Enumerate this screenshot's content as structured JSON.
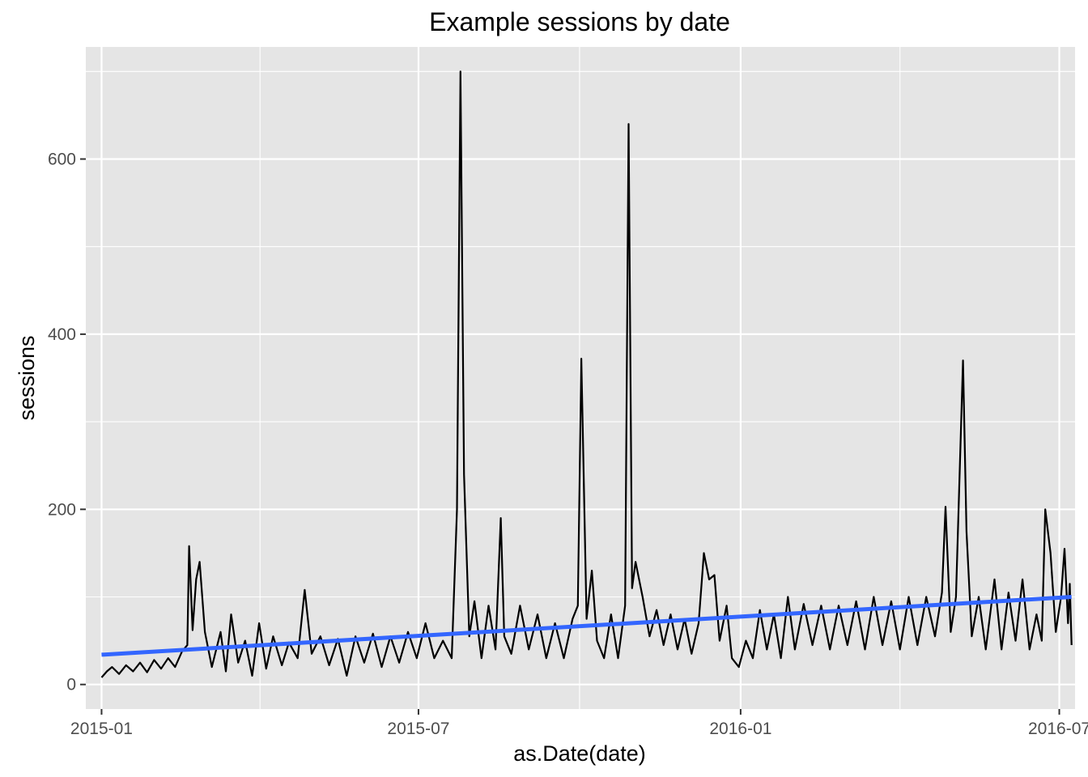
{
  "chart_data": {
    "type": "line",
    "title": "Example sessions by date",
    "xlabel": "as.Date(date)",
    "ylabel": "sessions",
    "x_ticks": [
      "2015-01",
      "2015-07",
      "2016-01",
      "2016-07"
    ],
    "y_ticks": [
      "0",
      "200",
      "400",
      "600"
    ],
    "xlim": [
      "2014-12-23",
      "2016-07-10"
    ],
    "ylim": [
      -28,
      728
    ],
    "grid": true,
    "legend": "none",
    "colors": {
      "panel": "#e5e5e5",
      "grid": "#ffffff",
      "series": "#000000",
      "trend": "#3366ff"
    },
    "series": [
      {
        "values": [
          [
            "2015-01-01",
            8
          ],
          [
            "2015-01-04",
            15
          ],
          [
            "2015-01-07",
            20
          ],
          [
            "2015-01-11",
            12
          ],
          [
            "2015-01-15",
            22
          ],
          [
            "2015-01-19",
            15
          ],
          [
            "2015-01-23",
            25
          ],
          [
            "2015-01-27",
            14
          ],
          [
            "2015-01-31",
            28
          ],
          [
            "2015-02-04",
            18
          ],
          [
            "2015-02-08",
            30
          ],
          [
            "2015-02-12",
            20
          ],
          [
            "2015-02-16",
            38
          ],
          [
            "2015-02-19",
            45
          ],
          [
            "2015-02-20",
            158
          ],
          [
            "2015-02-22",
            62
          ],
          [
            "2015-02-24",
            120
          ],
          [
            "2015-02-26",
            140
          ],
          [
            "2015-03-01",
            60
          ],
          [
            "2015-03-05",
            20
          ],
          [
            "2015-03-10",
            60
          ],
          [
            "2015-03-13",
            15
          ],
          [
            "2015-03-16",
            80
          ],
          [
            "2015-03-20",
            25
          ],
          [
            "2015-03-24",
            50
          ],
          [
            "2015-03-28",
            10
          ],
          [
            "2015-04-01",
            70
          ],
          [
            "2015-04-05",
            18
          ],
          [
            "2015-04-09",
            55
          ],
          [
            "2015-04-14",
            22
          ],
          [
            "2015-04-18",
            48
          ],
          [
            "2015-04-23",
            30
          ],
          [
            "2015-04-27",
            108
          ],
          [
            "2015-05-01",
            35
          ],
          [
            "2015-05-06",
            55
          ],
          [
            "2015-05-11",
            22
          ],
          [
            "2015-05-16",
            52
          ],
          [
            "2015-05-21",
            10
          ],
          [
            "2015-05-26",
            55
          ],
          [
            "2015-05-31",
            25
          ],
          [
            "2015-06-05",
            58
          ],
          [
            "2015-06-10",
            20
          ],
          [
            "2015-06-15",
            55
          ],
          [
            "2015-06-20",
            25
          ],
          [
            "2015-06-25",
            60
          ],
          [
            "2015-06-30",
            30
          ],
          [
            "2015-07-05",
            70
          ],
          [
            "2015-07-10",
            30
          ],
          [
            "2015-07-15",
            50
          ],
          [
            "2015-07-20",
            30
          ],
          [
            "2015-07-23",
            200
          ],
          [
            "2015-07-25",
            700
          ],
          [
            "2015-07-27",
            240
          ],
          [
            "2015-07-30",
            55
          ],
          [
            "2015-08-02",
            95
          ],
          [
            "2015-08-06",
            30
          ],
          [
            "2015-08-10",
            90
          ],
          [
            "2015-08-14",
            40
          ],
          [
            "2015-08-17",
            190
          ],
          [
            "2015-08-19",
            55
          ],
          [
            "2015-08-23",
            35
          ],
          [
            "2015-08-28",
            90
          ],
          [
            "2015-09-02",
            40
          ],
          [
            "2015-09-07",
            80
          ],
          [
            "2015-09-12",
            30
          ],
          [
            "2015-09-17",
            70
          ],
          [
            "2015-09-22",
            30
          ],
          [
            "2015-09-27",
            75
          ],
          [
            "2015-09-30",
            90
          ],
          [
            "2015-10-02",
            372
          ],
          [
            "2015-10-05",
            75
          ],
          [
            "2015-10-08",
            130
          ],
          [
            "2015-10-11",
            50
          ],
          [
            "2015-10-15",
            30
          ],
          [
            "2015-10-19",
            80
          ],
          [
            "2015-10-23",
            30
          ],
          [
            "2015-10-27",
            90
          ],
          [
            "2015-10-29",
            640
          ],
          [
            "2015-10-31",
            110
          ],
          [
            "2015-11-02",
            140
          ],
          [
            "2015-11-06",
            100
          ],
          [
            "2015-11-10",
            55
          ],
          [
            "2015-11-14",
            85
          ],
          [
            "2015-11-18",
            45
          ],
          [
            "2015-11-22",
            80
          ],
          [
            "2015-11-26",
            40
          ],
          [
            "2015-11-30",
            75
          ],
          [
            "2015-12-04",
            35
          ],
          [
            "2015-12-08",
            70
          ],
          [
            "2015-12-11",
            150
          ],
          [
            "2015-12-14",
            120
          ],
          [
            "2015-12-17",
            125
          ],
          [
            "2015-12-20",
            50
          ],
          [
            "2015-12-24",
            90
          ],
          [
            "2015-12-27",
            30
          ],
          [
            "2015-12-31",
            20
          ],
          [
            "2016-01-04",
            50
          ],
          [
            "2016-01-08",
            30
          ],
          [
            "2016-01-12",
            85
          ],
          [
            "2016-01-16",
            40
          ],
          [
            "2016-01-20",
            80
          ],
          [
            "2016-01-24",
            30
          ],
          [
            "2016-01-28",
            100
          ],
          [
            "2016-02-01",
            40
          ],
          [
            "2016-02-06",
            92
          ],
          [
            "2016-02-11",
            45
          ],
          [
            "2016-02-16",
            90
          ],
          [
            "2016-02-21",
            40
          ],
          [
            "2016-02-26",
            90
          ],
          [
            "2016-03-02",
            45
          ],
          [
            "2016-03-07",
            95
          ],
          [
            "2016-03-12",
            40
          ],
          [
            "2016-03-17",
            100
          ],
          [
            "2016-03-22",
            45
          ],
          [
            "2016-03-27",
            95
          ],
          [
            "2016-04-01",
            40
          ],
          [
            "2016-04-06",
            100
          ],
          [
            "2016-04-11",
            45
          ],
          [
            "2016-04-16",
            100
          ],
          [
            "2016-04-21",
            55
          ],
          [
            "2016-04-25",
            105
          ],
          [
            "2016-04-27",
            203
          ],
          [
            "2016-04-30",
            60
          ],
          [
            "2016-05-03",
            100
          ],
          [
            "2016-05-07",
            370
          ],
          [
            "2016-05-09",
            175
          ],
          [
            "2016-05-12",
            55
          ],
          [
            "2016-05-16",
            100
          ],
          [
            "2016-05-20",
            40
          ],
          [
            "2016-05-25",
            120
          ],
          [
            "2016-05-29",
            40
          ],
          [
            "2016-06-02",
            105
          ],
          [
            "2016-06-06",
            50
          ],
          [
            "2016-06-10",
            120
          ],
          [
            "2016-06-14",
            40
          ],
          [
            "2016-06-18",
            80
          ],
          [
            "2016-06-21",
            50
          ],
          [
            "2016-06-23",
            200
          ],
          [
            "2016-06-26",
            150
          ],
          [
            "2016-06-29",
            60
          ],
          [
            "2016-07-02",
            100
          ],
          [
            "2016-07-04",
            155
          ],
          [
            "2016-07-06",
            70
          ],
          [
            "2016-07-07",
            115
          ],
          [
            "2016-07-08",
            45
          ]
        ]
      },
      {
        "values": [
          [
            "2015-01-01",
            34
          ],
          [
            "2016-07-08",
            100
          ]
        ]
      }
    ]
  }
}
